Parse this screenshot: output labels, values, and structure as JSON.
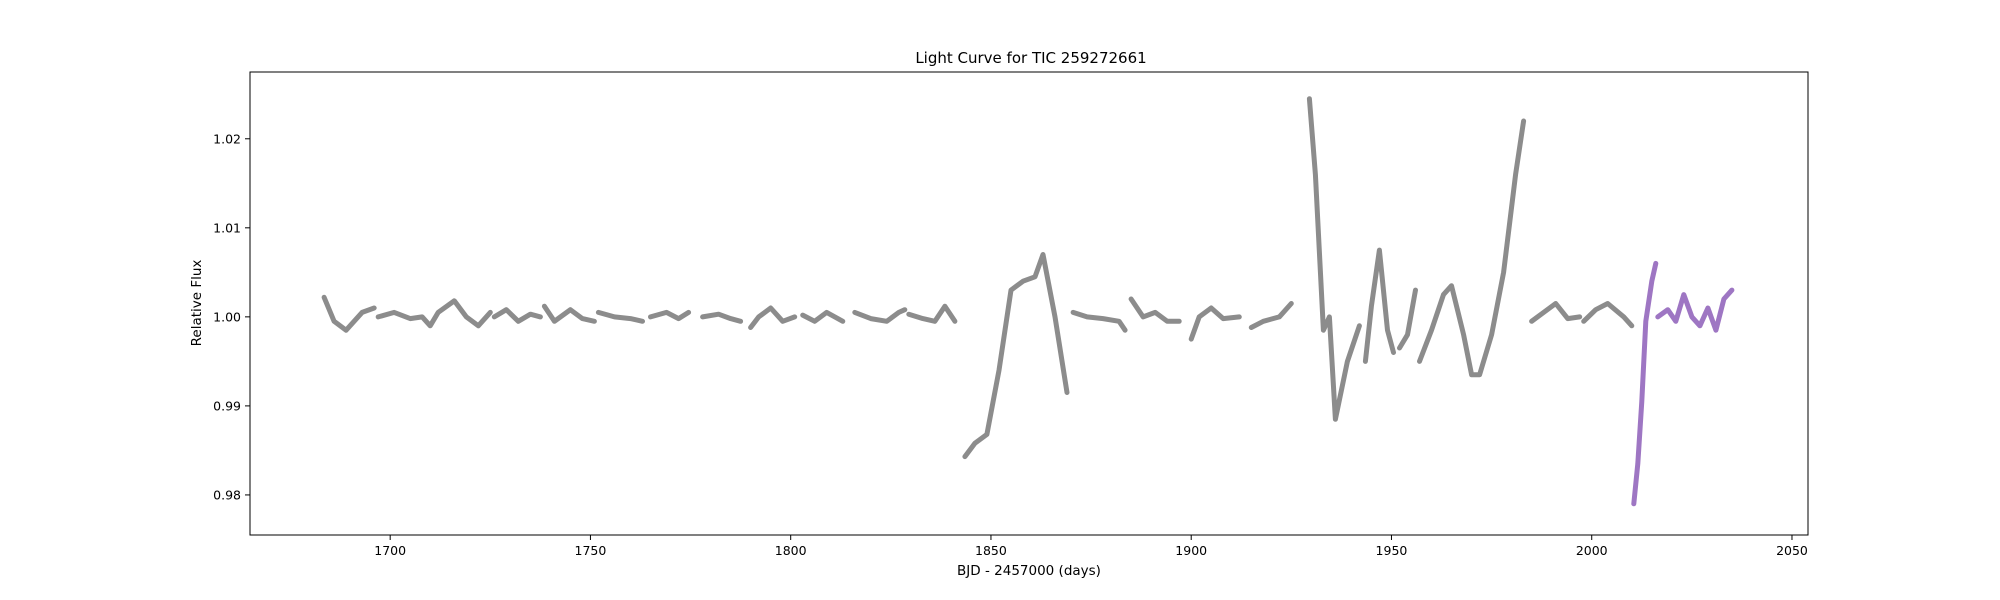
{
  "chart_data": {
    "type": "scatter",
    "title": "Light Curve for TIC 259272661",
    "xlabel": "BJD - 2457000 (days)",
    "ylabel": "Relative Flux",
    "xlim": [
      1665,
      2054
    ],
    "ylim": [
      0.9755,
      1.0275
    ],
    "xticks": [
      1700,
      1750,
      1800,
      1850,
      1900,
      1950,
      2000,
      2050
    ],
    "yticks": [
      0.98,
      0.99,
      1.0,
      1.01,
      1.02
    ],
    "xtick_labels": [
      "1700",
      "1750",
      "1800",
      "1850",
      "1900",
      "1950",
      "2000",
      "2050"
    ],
    "ytick_labels": [
      "0.98",
      "0.99",
      "1.00",
      "1.01",
      "1.02"
    ],
    "grid": false,
    "colors": {
      "archival": "#808080",
      "highlighted": "#9467bd"
    },
    "series": [
      {
        "color": "#808080",
        "segments": [
          [
            [
              1683.5,
              1.0022
            ],
            [
              1686,
              0.9995
            ],
            [
              1689,
              0.9985
            ],
            [
              1693,
              1.0005
            ],
            [
              1696,
              1.001
            ]
          ],
          [
            [
              1697,
              1.0
            ],
            [
              1701,
              1.0005
            ],
            [
              1705,
              0.9998
            ],
            [
              1708,
              1.0
            ],
            [
              1710,
              0.999
            ],
            [
              1712,
              1.0005
            ],
            [
              1716,
              1.0018
            ],
            [
              1719,
              1.0
            ],
            [
              1722,
              0.999
            ],
            [
              1725,
              1.0005
            ]
          ],
          [
            [
              1726,
              1.0
            ],
            [
              1729,
              1.0008
            ],
            [
              1732,
              0.9995
            ],
            [
              1735,
              1.0003
            ],
            [
              1737.5,
              1.0
            ]
          ],
          [
            [
              1738.5,
              1.0012
            ],
            [
              1741,
              0.9995
            ],
            [
              1745,
              1.0008
            ],
            [
              1748,
              0.9998
            ],
            [
              1751,
              0.9995
            ]
          ],
          [
            [
              1752,
              1.0005
            ],
            [
              1756,
              1.0
            ],
            [
              1760,
              0.9998
            ],
            [
              1763,
              0.9995
            ]
          ],
          [
            [
              1765,
              1.0
            ],
            [
              1769,
              1.0005
            ],
            [
              1772,
              0.9998
            ],
            [
              1774.5,
              1.0005
            ]
          ],
          [
            [
              1778,
              1.0
            ],
            [
              1782,
              1.0003
            ],
            [
              1785,
              0.9998
            ],
            [
              1787.5,
              0.9995
            ]
          ],
          [
            [
              1790,
              0.9988
            ],
            [
              1792,
              1.0
            ],
            [
              1795,
              1.001
            ],
            [
              1798,
              0.9995
            ],
            [
              1801,
              1.0
            ]
          ],
          [
            [
              1803,
              1.0002
            ],
            [
              1806,
              0.9995
            ],
            [
              1809,
              1.0005
            ],
            [
              1813,
              0.9995
            ]
          ],
          [
            [
              1816,
              1.0005
            ],
            [
              1820,
              0.9998
            ],
            [
              1824,
              0.9995
            ],
            [
              1827,
              1.0005
            ],
            [
              1828.5,
              1.0008
            ]
          ],
          [
            [
              1829.5,
              1.0003
            ],
            [
              1833,
              0.9998
            ],
            [
              1836,
              0.9995
            ],
            [
              1838.5,
              1.0012
            ],
            [
              1841,
              0.9995
            ]
          ],
          [
            [
              1843.5,
              0.9843
            ],
            [
              1846,
              0.9858
            ],
            [
              1849,
              0.9868
            ],
            [
              1852,
              0.994
            ],
            [
              1855,
              1.003
            ],
            [
              1858,
              1.004
            ],
            [
              1861,
              1.0045
            ],
            [
              1863,
              1.007
            ],
            [
              1866,
              1.0
            ],
            [
              1869,
              0.9915
            ]
          ],
          [
            [
              1870.5,
              1.0005
            ],
            [
              1874,
              1.0
            ],
            [
              1878,
              0.9998
            ],
            [
              1882,
              0.9995
            ],
            [
              1883.5,
              0.9985
            ]
          ],
          [
            [
              1885,
              1.002
            ],
            [
              1888,
              1.0
            ],
            [
              1891,
              1.0005
            ],
            [
              1894,
              0.9995
            ],
            [
              1897,
              0.9995
            ]
          ],
          [
            [
              1900,
              0.9975
            ],
            [
              1902,
              1.0
            ],
            [
              1905,
              1.001
            ],
            [
              1908,
              0.9998
            ],
            [
              1912,
              1.0
            ]
          ],
          [
            [
              1915,
              0.9988
            ],
            [
              1918,
              0.9995
            ],
            [
              1922,
              1.0
            ],
            [
              1925,
              1.0015
            ]
          ],
          [
            [
              1929.5,
              1.0245
            ],
            [
              1931,
              1.016
            ],
            [
              1933,
              0.9985
            ],
            [
              1934.5,
              1.0
            ],
            [
              1936,
              0.9885
            ],
            [
              1939,
              0.995
            ],
            [
              1942,
              0.999
            ]
          ],
          [
            [
              1943.5,
              0.995
            ],
            [
              1945,
              1.0012
            ],
            [
              1947,
              1.0075
            ],
            [
              1949,
              0.9985
            ],
            [
              1950.5,
              0.996
            ]
          ],
          [
            [
              1952,
              0.9965
            ],
            [
              1954,
              0.998
            ],
            [
              1956,
              1.003
            ]
          ],
          [
            [
              1957,
              0.995
            ],
            [
              1960,
              0.9985
            ],
            [
              1963,
              1.0025
            ],
            [
              1965,
              1.0035
            ],
            [
              1968,
              0.998
            ],
            [
              1970,
              0.9935
            ],
            [
              1972,
              0.9935
            ],
            [
              1975,
              0.998
            ],
            [
              1978,
              1.005
            ],
            [
              1981,
              1.016
            ],
            [
              1983,
              1.022
            ]
          ],
          [
            [
              1985,
              0.9995
            ],
            [
              1988,
              1.0005
            ],
            [
              1991,
              1.0015
            ],
            [
              1994,
              0.9998
            ],
            [
              1997,
              1.0
            ]
          ],
          [
            [
              1998,
              0.9995
            ],
            [
              2001,
              1.0008
            ],
            [
              2004,
              1.0015
            ],
            [
              2008,
              1.0
            ],
            [
              2010,
              0.999
            ]
          ]
        ]
      },
      {
        "color": "#9467bd",
        "segments": [
          [
            [
              2010.5,
              0.979
            ],
            [
              2011.5,
              0.9835
            ],
            [
              2012.5,
              0.9905
            ],
            [
              2013.5,
              0.9995
            ],
            [
              2015,
              1.004
            ],
            [
              2016,
              1.006
            ]
          ],
          [
            [
              2016.5,
              1.0
            ],
            [
              2019,
              1.0008
            ],
            [
              2021,
              0.9995
            ],
            [
              2023,
              1.0025
            ],
            [
              2025,
              1.0
            ],
            [
              2027,
              0.999
            ],
            [
              2029,
              1.001
            ],
            [
              2031,
              0.9985
            ],
            [
              2033,
              1.002
            ],
            [
              2035,
              1.003
            ]
          ]
        ]
      }
    ]
  }
}
